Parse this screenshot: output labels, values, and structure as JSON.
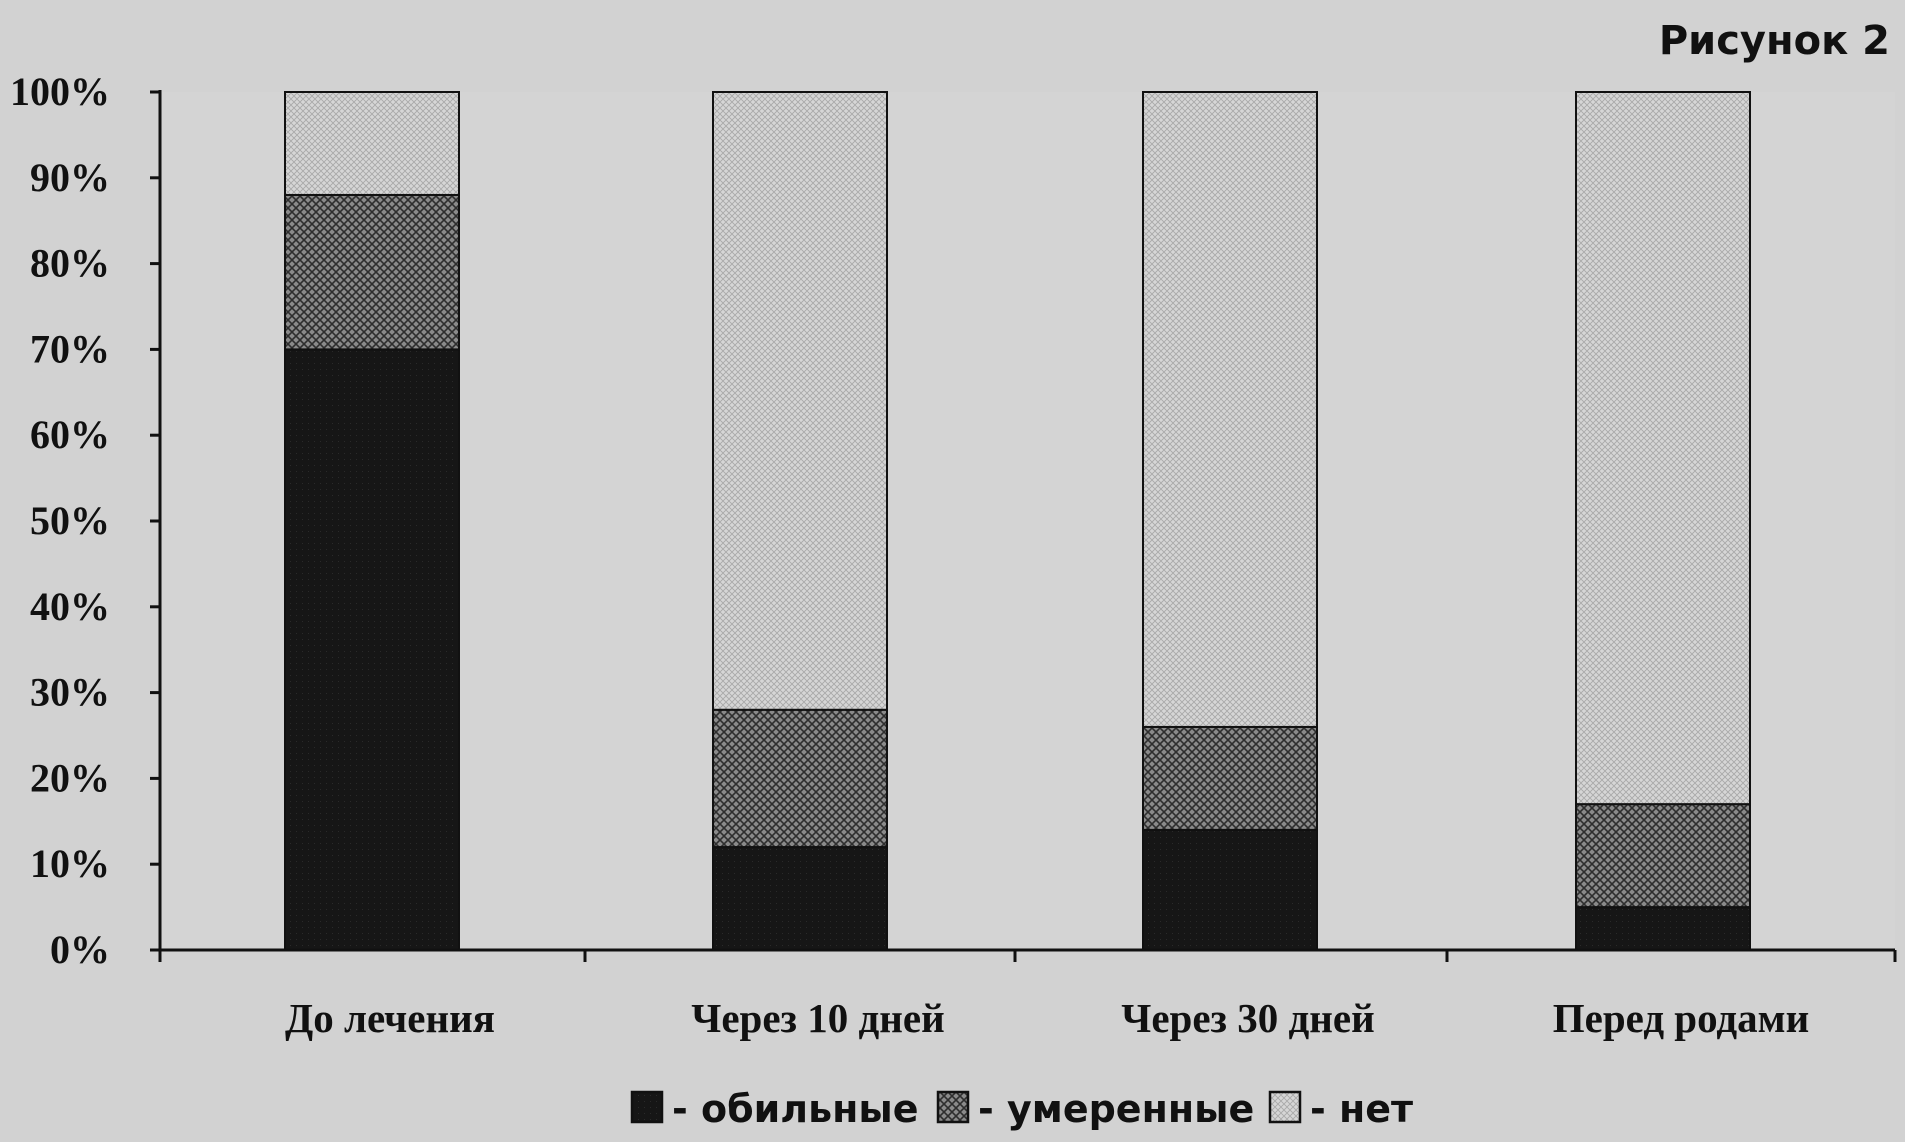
{
  "figure_label": "Рисунок 2",
  "chart_data": {
    "type": "bar",
    "stacked": true,
    "categories": [
      "До лечения",
      "Через 10 дней",
      "Через 30 дней",
      "Перед родами"
    ],
    "series": [
      {
        "name": "обильные",
        "values": [
          70,
          12,
          14,
          5
        ],
        "color": "#161616",
        "pattern": "solid"
      },
      {
        "name": "умеренные",
        "values": [
          18,
          16,
          12,
          12
        ],
        "color": "#666666",
        "pattern": "crosshatch"
      },
      {
        "name": "нет",
        "values": [
          12,
          72,
          74,
          83
        ],
        "color": "#c8c8c8",
        "pattern": "fine-dots"
      }
    ],
    "y_ticks": [
      "0%",
      "10%",
      "20%",
      "30%",
      "40%",
      "50%",
      "60%",
      "70%",
      "80%",
      "90%",
      "100%"
    ],
    "ylim": [
      0,
      100
    ],
    "grid": false,
    "legend_position": "bottom",
    "legend_prefix": "- "
  }
}
